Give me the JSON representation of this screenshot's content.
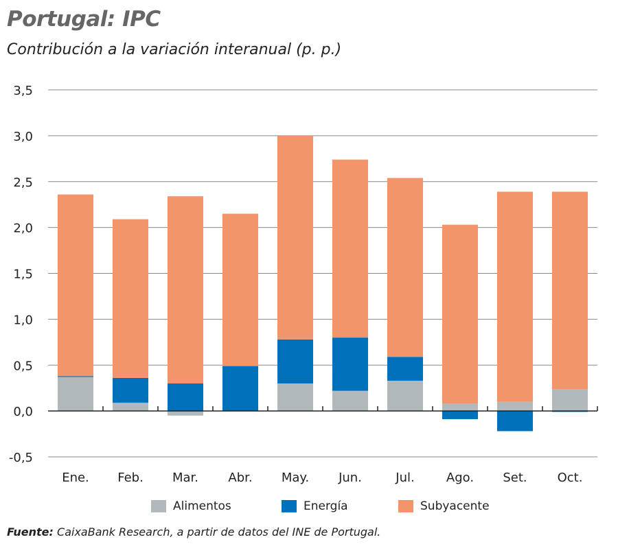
{
  "title": "Portugal: IPC",
  "subtitle": "Contribución a la variación interanual (p. p.)",
  "source": {
    "label": "Fuente:",
    "text": " CaixaBank Research, a partir de datos del INE de Portugal."
  },
  "chart_data": {
    "type": "bar",
    "stacked": true,
    "categories": [
      "Ene.",
      "Feb.",
      "Mar.",
      "Abr.",
      "May.",
      "Jun.",
      "Jul.",
      "Ago.",
      "Set.",
      "Oct."
    ],
    "series": [
      {
        "name": "Alimentos",
        "color": "#b1b9bd",
        "values": [
          0.37,
          0.09,
          -0.05,
          0.0,
          0.3,
          0.22,
          0.33,
          0.08,
          0.1,
          0.24
        ]
      },
      {
        "name": "Energía",
        "color": "#0070ba",
        "values": [
          0.01,
          0.27,
          0.3,
          0.49,
          0.48,
          0.58,
          0.26,
          -0.09,
          -0.22,
          -0.01
        ]
      },
      {
        "name": "Subyacente",
        "color": "#f2956a",
        "values": [
          1.98,
          1.73,
          2.04,
          1.66,
          2.22,
          1.94,
          1.95,
          1.95,
          2.29,
          2.15
        ]
      }
    ],
    "ylim": [
      -0.5,
      3.5
    ],
    "yticks": [
      "-0,5",
      "0,0",
      "0,5",
      "1,0",
      "1,5",
      "2,0",
      "2,5",
      "3,0",
      "3,5"
    ],
    "grid": true,
    "legend": "bottom"
  }
}
